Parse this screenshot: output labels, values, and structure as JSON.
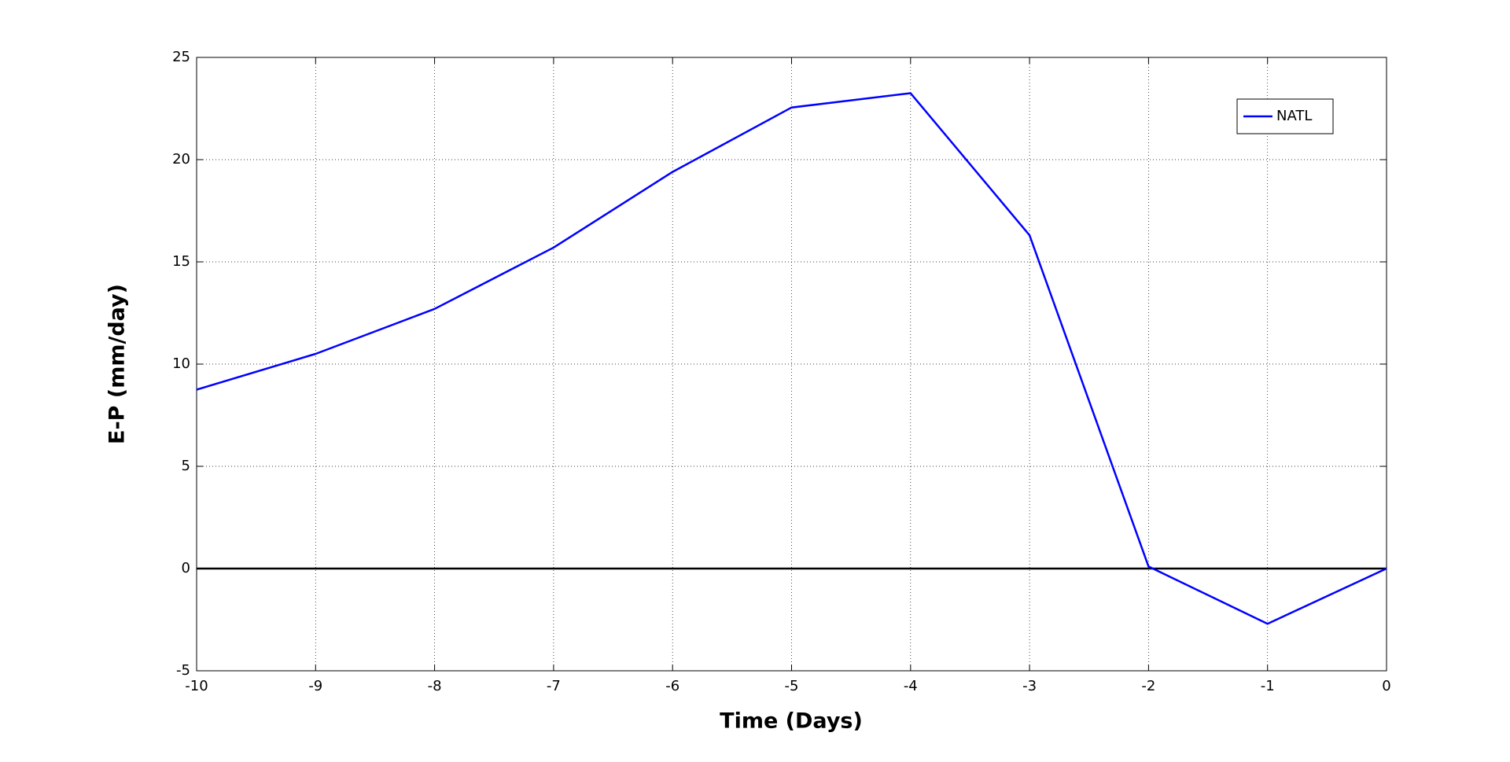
{
  "chart_data": {
    "type": "line",
    "xlabel": "Time (Days)",
    "ylabel": "E-P (mm/day)",
    "x": [
      -10,
      -9,
      -8,
      -7,
      -6,
      -5,
      -4,
      -3,
      -2,
      -1,
      0
    ],
    "series": [
      {
        "name": "NATL",
        "color": "#0000ff",
        "values": [
          8.75,
          10.5,
          12.7,
          15.7,
          19.4,
          22.55,
          23.25,
          16.3,
          0.1,
          -2.7,
          0.0
        ]
      }
    ],
    "xlim": [
      -10,
      0
    ],
    "xticks": [
      -10,
      -9,
      -8,
      -7,
      -6,
      -5,
      -4,
      -3,
      -2,
      -1,
      0
    ],
    "ylim": [
      -5,
      25
    ],
    "yticks": [
      -5,
      0,
      5,
      10,
      15,
      20,
      25
    ],
    "grid": true,
    "legend": "upper right"
  }
}
